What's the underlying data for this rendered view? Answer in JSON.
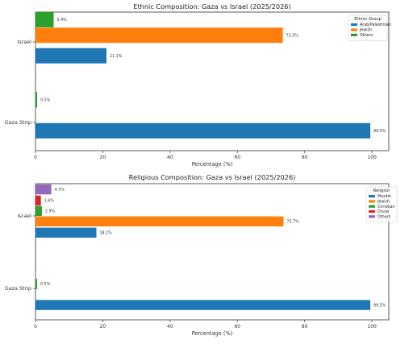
{
  "chart_data": [
    {
      "type": "bar",
      "orientation": "horizontal",
      "title": "Ethnic Composition: Gaza vs Israel (2025/2026)",
      "xlabel": "Percentage (%)",
      "ylabel": "",
      "xlim": [
        0,
        105
      ],
      "xticks": [
        0,
        20,
        40,
        60,
        80,
        100
      ],
      "categories": [
        "Gaza Strip",
        "Israel"
      ],
      "legend_title": "Ethnic Group",
      "legend_position": "upper right",
      "series": [
        {
          "name": "Arab/Palestinian",
          "color": "#1f77b4",
          "values": [
            99.5,
            21.1
          ],
          "labels": [
            "99.5%",
            "21.1%"
          ]
        },
        {
          "name": "Jewish",
          "color": "#ff7f0e",
          "values": [
            0,
            73.5
          ],
          "labels": [
            "",
            "73.5%"
          ]
        },
        {
          "name": "Others",
          "color": "#2ca02c",
          "values": [
            0.5,
            5.4
          ],
          "labels": [
            "0.5%",
            "5.4%"
          ]
        }
      ]
    },
    {
      "type": "bar",
      "orientation": "horizontal",
      "title": "Religious Composition: Gaza vs Israel (2025/2026)",
      "xlabel": "Percentage (%)",
      "ylabel": "",
      "xlim": [
        0,
        105
      ],
      "xticks": [
        0,
        20,
        40,
        60,
        80,
        100
      ],
      "categories": [
        "Gaza Strip",
        "Israel"
      ],
      "legend_title": "Religion",
      "legend_position": "upper right",
      "series": [
        {
          "name": "Muslim",
          "color": "#1f77b4",
          "values": [
            99.5,
            18.1
          ],
          "labels": [
            "99.5%",
            "18.1%"
          ]
        },
        {
          "name": "Jewish",
          "color": "#ff7f0e",
          "values": [
            0,
            73.7
          ],
          "labels": [
            "",
            "73.7%"
          ]
        },
        {
          "name": "Christian",
          "color": "#2ca02c",
          "values": [
            0.5,
            1.9
          ],
          "labels": [
            "0.5%",
            "1.9%"
          ]
        },
        {
          "name": "Druze",
          "color": "#d62728",
          "values": [
            0,
            1.6
          ],
          "labels": [
            "",
            "1.6%"
          ]
        },
        {
          "name": "Others",
          "color": "#9467bd",
          "values": [
            0,
            4.7
          ],
          "labels": [
            "",
            "4.7%"
          ]
        }
      ]
    }
  ]
}
